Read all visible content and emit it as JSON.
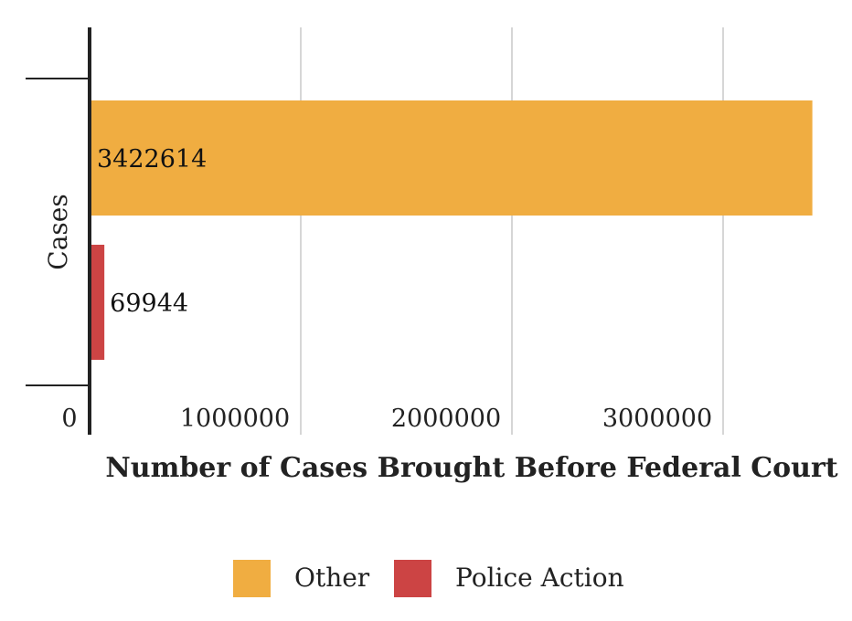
{
  "chart_data": {
    "type": "bar",
    "orientation": "horizontal",
    "xlabel": "Number of Cases Brought Before Federal Court",
    "ylabel": "Cases",
    "xlim": [
      0,
      3600000
    ],
    "xticks": [
      0,
      1000000,
      2000000,
      3000000
    ],
    "xtick_labels": [
      "0",
      "1000000",
      "2000000",
      "3000000"
    ],
    "grid": true,
    "legend": "bottom-center",
    "series": [
      {
        "name": "Other",
        "value": 3422614,
        "label": "3422614",
        "color": "#F0AD41"
      },
      {
        "name": "Police Action",
        "value": 69944,
        "label": "69944",
        "color": "#CC4444"
      }
    ]
  }
}
